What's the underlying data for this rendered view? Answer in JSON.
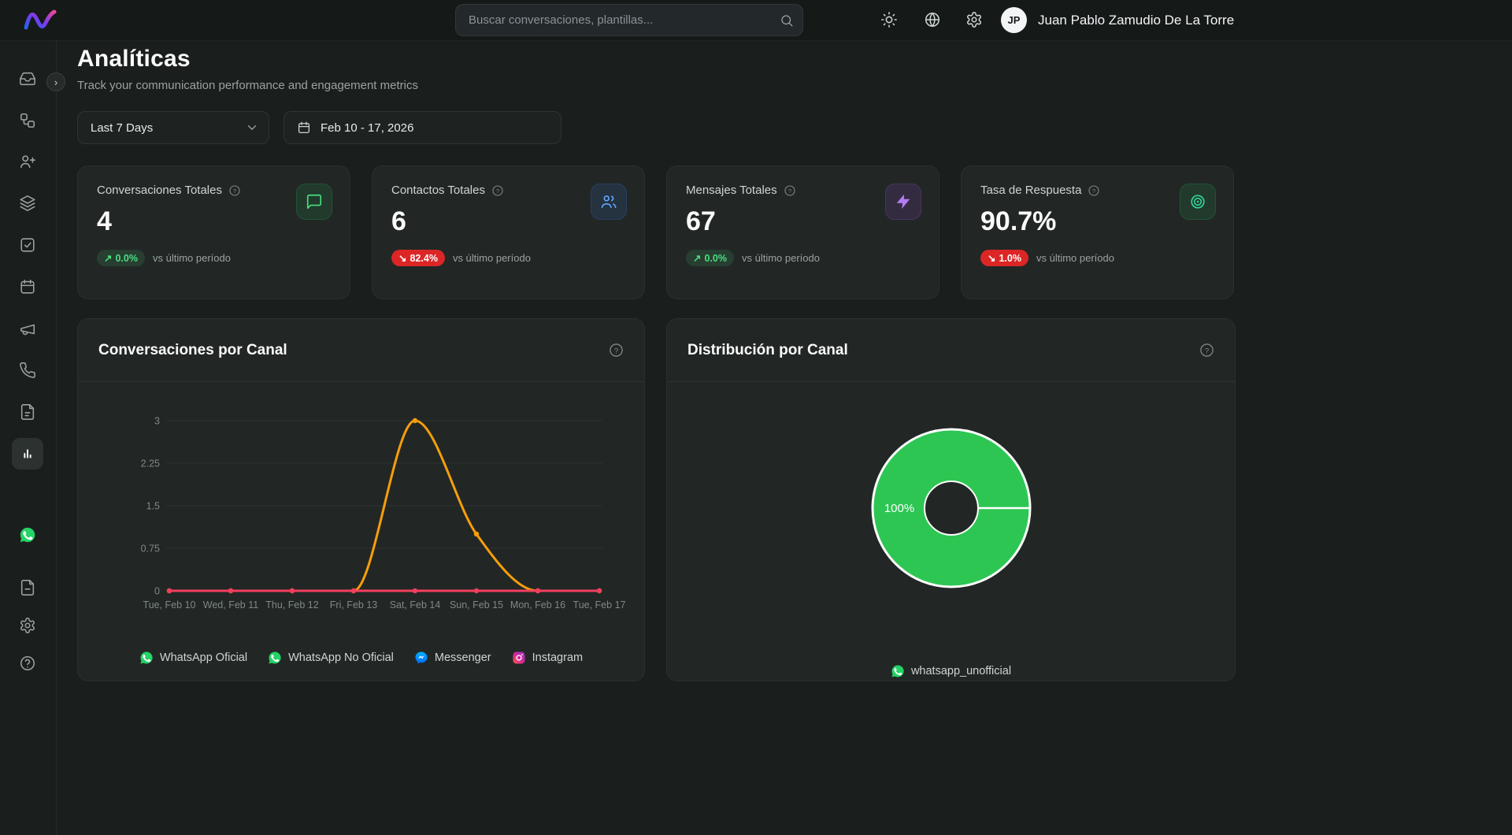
{
  "topbar": {
    "search_placeholder": "Buscar conversaciones, plantillas...",
    "user_initials": "JP",
    "user_name": "Juan Pablo Zamudio De La Torre",
    "icons": [
      "theme-toggle-sun",
      "language-globe",
      "settings-gear",
      "search"
    ]
  },
  "sidebar": {
    "items": [
      "inbox",
      "automations",
      "contacts",
      "channels",
      "tasks",
      "calendar",
      "campaigns",
      "calls",
      "notes",
      "analytics",
      "whatsapp",
      "templates",
      "settings",
      "help"
    ],
    "active": "analytics"
  },
  "page": {
    "title": "Analíticas",
    "subtitle": "Track your communication performance and engagement metrics"
  },
  "filters": {
    "period": "Last 7 Days",
    "date_range": "Feb 10 - 17, 2026"
  },
  "stats": [
    {
      "label": "Conversaciones Totales",
      "value": "4",
      "arrow": "↗",
      "delta": "0.0%",
      "tone": "positive",
      "compare": "vs último período",
      "icon": "message-square-icon",
      "accent": "#4ade80"
    },
    {
      "label": "Contactos Totales",
      "value": "6",
      "arrow": "↘",
      "delta": "82.4%",
      "tone": "negative",
      "compare": "vs último período",
      "icon": "users-icon",
      "accent": "#60a5fa"
    },
    {
      "label": "Mensajes Totales",
      "value": "67",
      "arrow": "↗",
      "delta": "0.0%",
      "tone": "positive",
      "compare": "vs último período",
      "icon": "zap-icon",
      "accent": "#b57bf5"
    },
    {
      "label": "Tasa de Respuesta",
      "value": "90.7%",
      "arrow": "↘",
      "delta": "1.0%",
      "tone": "negative",
      "compare": "vs último período",
      "icon": "target-icon",
      "accent": "#34d399"
    }
  ],
  "colors": {
    "background": "#1a1e1d",
    "card": "#222725",
    "whatsapp_green": "#25d366",
    "line_orange": "#f59e0b",
    "line_rose": "#f43f5e",
    "badge_red": "#dc2626",
    "badge_green": "#4ade80",
    "donut_green": "#2dc653"
  },
  "chart_data": [
    {
      "type": "line",
      "title": "Conversaciones por Canal",
      "x": [
        "Tue, Feb 10",
        "Wed, Feb 11",
        "Thu, Feb 12",
        "Fri, Feb 13",
        "Sat, Feb 14",
        "Sun, Feb 15",
        "Mon, Feb 16",
        "Tue, Feb 17"
      ],
      "series": [
        {
          "name": "WhatsApp No Oficial",
          "color": "#f59e0b",
          "values": [
            0,
            0,
            0,
            0,
            3,
            1,
            0,
            0
          ]
        },
        {
          "name": "WhatsApp Oficial",
          "color": "#f43f5e",
          "values": [
            0,
            0,
            0,
            0,
            0,
            0,
            0,
            0
          ]
        }
      ],
      "ylim": [
        0,
        3
      ],
      "yticks": [
        0,
        0.75,
        1.5,
        2.25,
        3
      ],
      "grid": true,
      "legend": [
        {
          "label": "WhatsApp Oficial",
          "icon": "whatsapp"
        },
        {
          "label": "WhatsApp No Oficial",
          "icon": "whatsapp"
        },
        {
          "label": "Messenger",
          "icon": "messenger"
        },
        {
          "label": "Instagram",
          "icon": "instagram"
        }
      ]
    },
    {
      "type": "pie",
      "title": "Distribución por Canal",
      "slices": [
        {
          "label": "whatsapp_unofficial",
          "value": 100,
          "color": "#2dc653"
        }
      ],
      "center_label": "100%",
      "legend": [
        {
          "label": "whatsapp_unofficial",
          "icon": "whatsapp"
        }
      ]
    }
  ]
}
